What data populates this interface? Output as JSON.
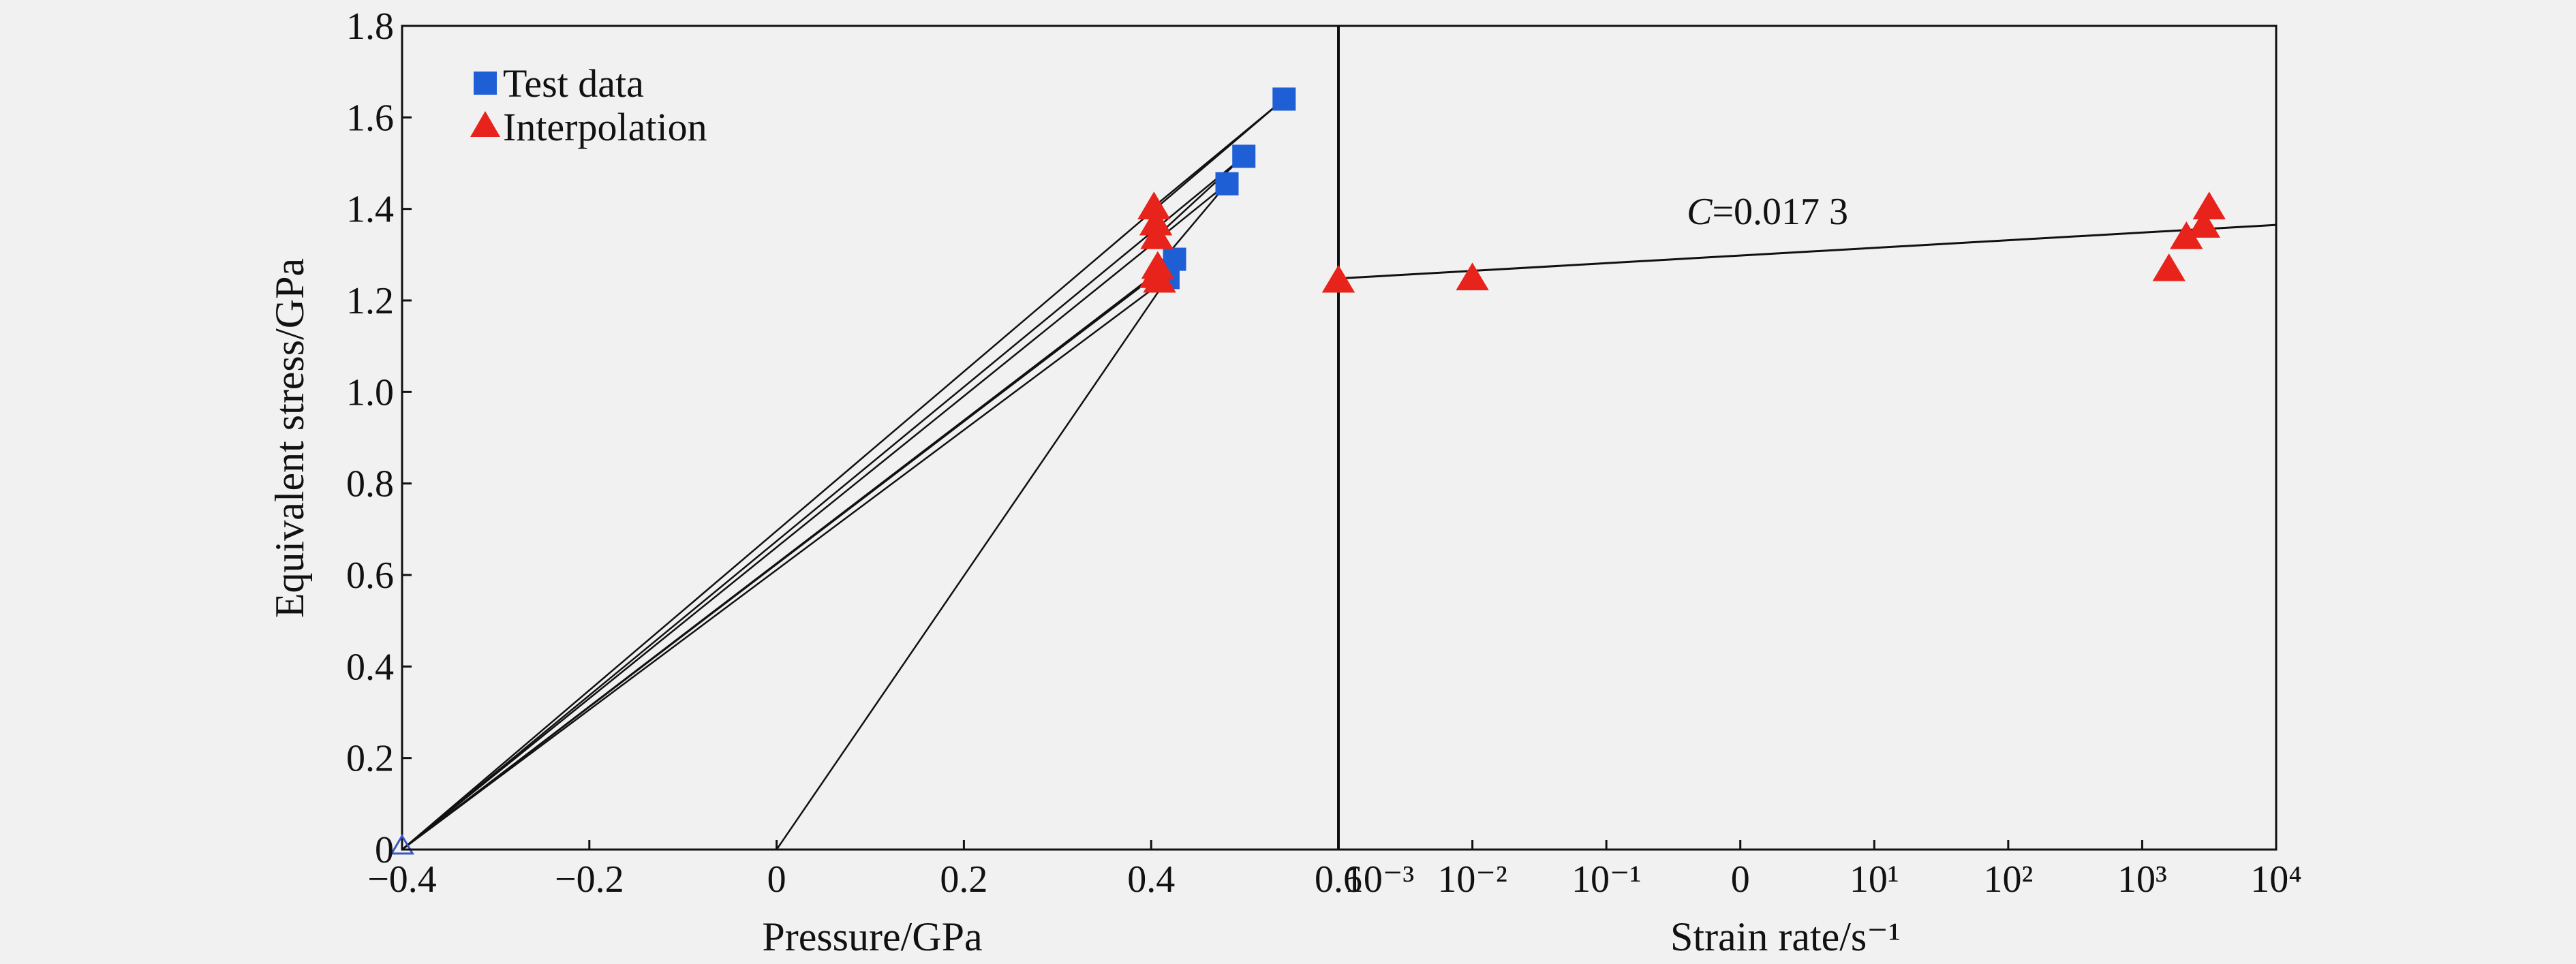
{
  "colors": {
    "background": "#f1f1f1",
    "test_marker": "#1f5fd6",
    "interp_marker": "#e8231b",
    "line": "#111111",
    "origin_marker_stroke": "#3a55c8"
  },
  "chart_data": {
    "type": "scatter",
    "ylabel": "Equivalent stress/GPa",
    "ylim": [
      0,
      1.8
    ],
    "yticks": [
      "0",
      "0.2",
      "0.4",
      "0.6",
      "0.8",
      "1.0",
      "1.2",
      "1.4",
      "1.6",
      "1.8"
    ],
    "yticks_values": [
      0,
      0.2,
      0.4,
      0.6,
      0.8,
      1.0,
      1.2,
      1.4,
      1.6,
      1.8
    ],
    "legend": {
      "placement": "top-left",
      "entries": [
        {
          "label": "Test data",
          "marker": "square",
          "color": "#1f5fd6"
        },
        {
          "label": "Interpolation",
          "marker": "triangle",
          "color": "#e8231b"
        }
      ]
    },
    "panels": [
      {
        "xlabel": "Pressure/GPa",
        "xlim": [
          -0.4,
          0.6
        ],
        "xticks": [
          "−0.4",
          "−0.2",
          "0",
          "0.2",
          "0.4",
          "0.6"
        ],
        "xticks_values": [
          -0.4,
          -0.2,
          0,
          0.2,
          0.4,
          0.6
        ],
        "series": [
          {
            "name": "Test data",
            "marker": "square",
            "points": [
              {
                "x": 0.542,
                "y": 1.64
              },
              {
                "x": 0.499,
                "y": 1.515
              },
              {
                "x": 0.481,
                "y": 1.455
              },
              {
                "x": 0.425,
                "y": 1.29
              },
              {
                "x": 0.418,
                "y": 1.25
              }
            ]
          },
          {
            "name": "Interpolation",
            "marker": "triangle",
            "points": [
              {
                "x": 0.403,
                "y": 1.405
              },
              {
                "x": 0.405,
                "y": 1.37
              },
              {
                "x": 0.406,
                "y": 1.34
              },
              {
                "x": 0.407,
                "y": 1.275
              },
              {
                "x": 0.405,
                "y": 1.255
              },
              {
                "x": 0.409,
                "y": 1.245
              }
            ]
          },
          {
            "name": "Origin",
            "marker": "open-triangle",
            "points": [
              {
                "x": -0.4,
                "y": 0
              }
            ]
          }
        ],
        "lines": [
          {
            "x1": -0.4,
            "y1": 0,
            "x2": 0.542,
            "y2": 1.64
          },
          {
            "x1": -0.4,
            "y1": 0,
            "x2": 0.499,
            "y2": 1.515
          },
          {
            "x1": -0.4,
            "y1": 0,
            "x2": 0.481,
            "y2": 1.455
          },
          {
            "x1": -0.4,
            "y1": 0,
            "x2": 0.425,
            "y2": 1.29
          },
          {
            "x1": -0.4,
            "y1": 0,
            "x2": 0.418,
            "y2": 1.25
          },
          {
            "x1": -0.4,
            "y1": 0,
            "x2": 0.405,
            "y2": 1.255
          },
          {
            "x1": 0,
            "y1": 0,
            "x2": 0.418,
            "y2": 1.25
          },
          {
            "x1": 0.403,
            "y1": 1.405,
            "x2": 0.542,
            "y2": 1.64
          },
          {
            "x1": 0.406,
            "y1": 1.34,
            "x2": 0.499,
            "y2": 1.515
          },
          {
            "x1": 0.407,
            "y1": 1.275,
            "x2": 0.481,
            "y2": 1.455
          }
        ]
      },
      {
        "xlabel": "Strain rate/s⁻¹",
        "xlim": [
          -3,
          4
        ],
        "xticks": [
          "10⁻³",
          "10⁻²",
          "10⁻¹",
          "0",
          "10¹",
          "10²",
          "10³",
          "10⁴"
        ],
        "xticks_values": [
          -3,
          -2,
          -1,
          0,
          1,
          2,
          3,
          4
        ],
        "series": [
          {
            "name": "Interpolation",
            "marker": "triangle",
            "points": [
              {
                "x": -3,
                "y": 1.245
              },
              {
                "x": -2,
                "y": 1.25
              },
              {
                "x": 3.2,
                "y": 1.27
              },
              {
                "x": 3.33,
                "y": 1.34
              },
              {
                "x": 3.46,
                "y": 1.365
              },
              {
                "x": 3.5,
                "y": 1.405
              }
            ]
          }
        ],
        "fit_line": {
          "x1": -3,
          "y1": 1.248,
          "x2": 4,
          "y2": 1.365
        },
        "annotation": {
          "italic": "C",
          "text": "=0.017 3",
          "x": -0.4,
          "y": 1.355
        }
      }
    ]
  }
}
